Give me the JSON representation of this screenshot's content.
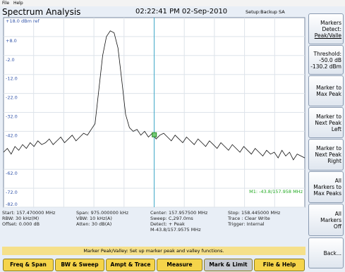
{
  "menu": [
    "File",
    "Help"
  ],
  "header": {
    "title": "Spectrum Analysis",
    "time": "02:22:41 PM 02-Sep-2010",
    "setup": "Setup:Backup SA"
  },
  "plot": {
    "ref_label": "+18.0 dBm ref",
    "ylim": [
      -82,
      18
    ],
    "xlim": [
      157.47,
      158.445
    ],
    "yticks": [
      {
        "value": 8,
        "label": "+8.0"
      },
      {
        "value": -2,
        "label": "-2.0"
      },
      {
        "value": -12,
        "label": "-12.0"
      },
      {
        "value": -22,
        "label": "-22.0"
      },
      {
        "value": -32,
        "label": "-32.0"
      },
      {
        "value": -42,
        "label": "-42.0"
      },
      {
        "value": -62,
        "label": "-62.0"
      },
      {
        "value": -72,
        "label": "-72.0"
      },
      {
        "value": -82,
        "label": "-82.0"
      }
    ],
    "center_freq": 157.9575,
    "trace": [
      -53,
      -51,
      -54,
      -50,
      -52,
      -49,
      -51,
      -48,
      -50,
      -47,
      -49,
      -48,
      -46,
      -49,
      -47,
      -45,
      -48,
      -46,
      -44,
      -47,
      -45,
      -43,
      -44,
      -41,
      -38,
      -20,
      -2,
      8,
      11,
      10,
      2,
      -15,
      -33,
      -40,
      -42,
      -41,
      -44,
      -42,
      -45,
      -43,
      -46,
      -44,
      -43,
      -45,
      -47,
      -44,
      -46,
      -48,
      -45,
      -47,
      -49,
      -46,
      -48,
      -50,
      -47,
      -49,
      -51,
      -48,
      -50,
      -52,
      -49,
      -51,
      -53,
      -50,
      -52,
      -54,
      -51,
      -53,
      -55,
      -52,
      -54,
      -53,
      -56,
      -52,
      -55,
      -53,
      -57,
      -54,
      -55,
      -56
    ],
    "marker": {
      "freq": 157.958,
      "value": -43.8,
      "label": "M1: -43.8/157.958 MHz"
    }
  },
  "info": [
    [
      "Start: 157.470000 MHz",
      "RBW: 30 kHz(M)",
      "Offset: 0.000 dB"
    ],
    [
      "Span: 975.000000 kHz",
      "VBW: 10 kHz(A)",
      "Atten: 30 dB(A)"
    ],
    [
      "Center: 157.957500 MHz",
      "Sweep: C,297.0ms",
      "Detect: + Peak",
      "M-43.8/157.9575 MHz"
    ],
    [
      "Stop: 158.445000 MHz",
      "Trace : Clear Write",
      "Trigger: Internal"
    ]
  ],
  "status": "Marker Peak/Valley: Set up marker peak and valley functions.",
  "softkeys": [
    [
      "Markers",
      "Detect:",
      "Peak/Valle"
    ],
    [
      "Threshold:",
      "-50.0 dB",
      "-130.2 dBm"
    ],
    [
      "Marker to",
      "Max Peak"
    ],
    [
      "Marker to",
      "Next Peak",
      "Left"
    ],
    [
      "Marker to",
      "Next Peak",
      "Right"
    ],
    [
      "All",
      "Markers to",
      "Max Peaks"
    ],
    [
      "All",
      "Markers",
      "Off"
    ],
    [
      "Back..."
    ]
  ],
  "buttons": [
    "Freq & Span",
    "BW & Sweep",
    "Ampt & Trace",
    "Measure",
    "Mark & Limit",
    "File & Help"
  ]
}
